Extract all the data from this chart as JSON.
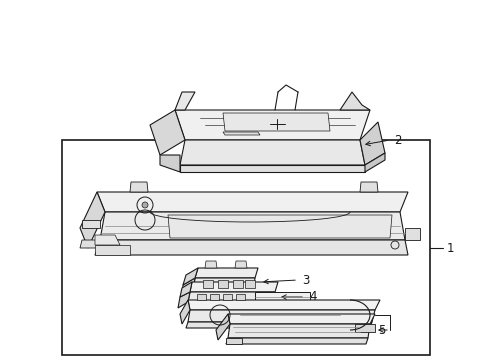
{
  "bg_color": "#ffffff",
  "line_color": "#1a1a1a",
  "label_1": "1",
  "label_2": "2",
  "label_3": "3",
  "label_4": "4",
  "label_5": "5",
  "font_size": 8.5
}
